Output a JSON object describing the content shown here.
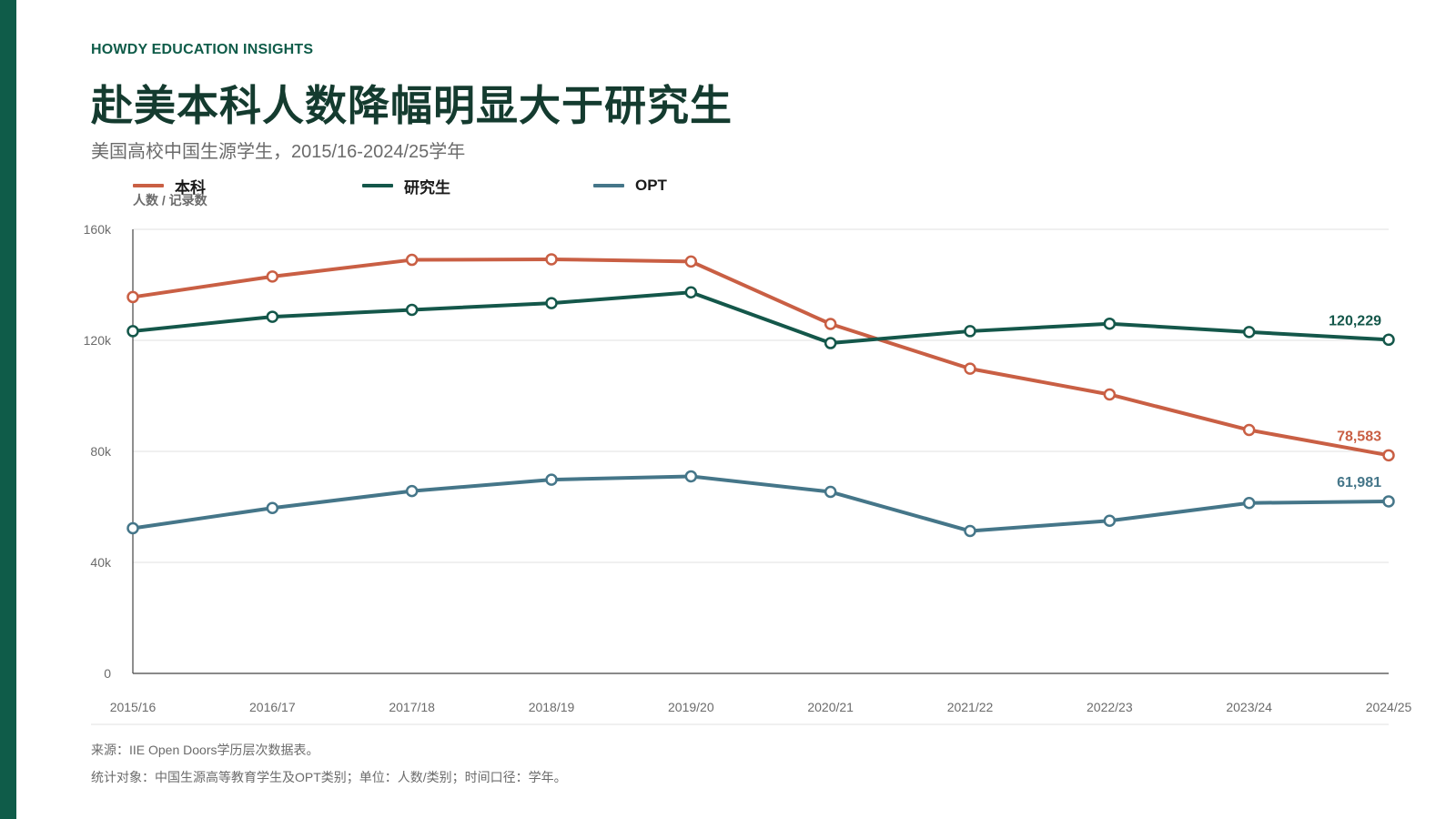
{
  "header": {
    "kicker": "HOWDY EDUCATION INSIGHTS",
    "title": "赴美本科人数降幅明显大于研究生",
    "subtitle": "美国高校中国生源学生，2015/16-2024/25学年"
  },
  "colors": {
    "accent": "#0f5c49",
    "undergrad": "#c95f44",
    "graduate": "#14574a",
    "opt": "#457689",
    "grid": "#e2e2e2",
    "axis": "#444444",
    "tick_text": "#6b6b6b"
  },
  "chart_data": {
    "type": "line",
    "title": "赴美本科人数降幅明显大于研究生",
    "ylabel": "人数 / 记录数",
    "xlabel": "",
    "categories": [
      "2015/16",
      "2016/17",
      "2017/18",
      "2018/19",
      "2019/20",
      "2020/21",
      "2021/22",
      "2022/23",
      "2023/24",
      "2024/25"
    ],
    "ylim": [
      0,
      160000
    ],
    "yticks": [
      0,
      40000,
      80000,
      120000,
      160000
    ],
    "ytick_labels": [
      "0",
      "40k",
      "80k",
      "120k",
      "160k"
    ],
    "grid": true,
    "legend_position": "top-left",
    "series": [
      {
        "name": "本科",
        "color": "#c95f44",
        "values": [
          135600,
          143000,
          149000,
          149200,
          148400,
          125900,
          109800,
          100500,
          87700,
          78583
        ],
        "end_label": "78,583"
      },
      {
        "name": "研究生",
        "color": "#14574a",
        "values": [
          123300,
          128500,
          131000,
          133400,
          137300,
          119000,
          123300,
          126000,
          123000,
          120229
        ],
        "end_label": "120,229"
      },
      {
        "name": "OPT",
        "color": "#457689",
        "values": [
          52300,
          59600,
          65700,
          69800,
          71000,
          65400,
          51300,
          55000,
          61400,
          61981
        ],
        "end_label": "61,981"
      }
    ]
  },
  "footer": {
    "source": "来源：IIE Open Doors学历层次数据表。",
    "note": "统计对象：中国生源高等教育学生及OPT类别；单位：人数/类别；时间口径：学年。"
  }
}
